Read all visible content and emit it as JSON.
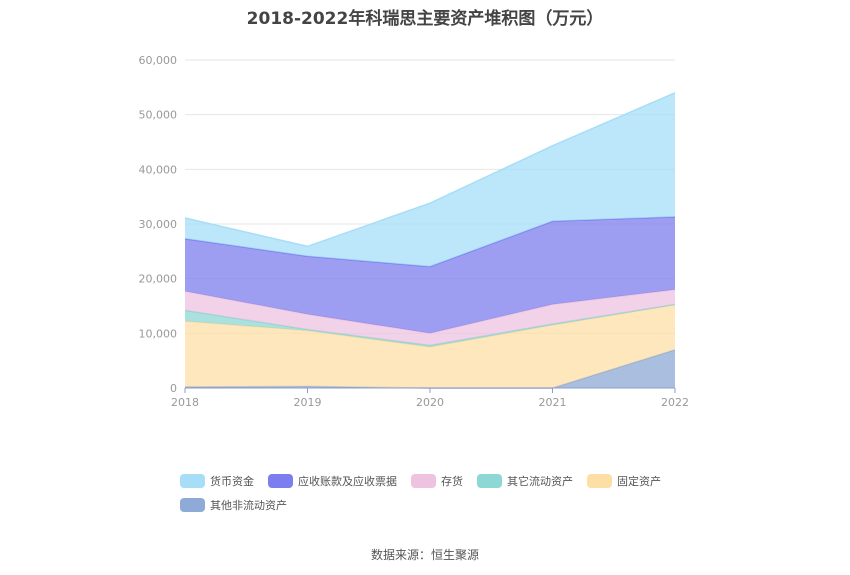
{
  "chart_data": {
    "type": "area",
    "stacked": true,
    "title": "2018-2022年科瑞思主要资产堆积图（万元）",
    "x": [
      "2018",
      "2019",
      "2020",
      "2021",
      "2022"
    ],
    "ylim": [
      0,
      60000
    ],
    "yticks": [
      "0",
      "10,000",
      "20,000",
      "30,000",
      "40,000",
      "50,000",
      "60,000"
    ],
    "grid": true,
    "legend_position": "bottom",
    "series": [
      {
        "name": "其他非流动资产",
        "color": "#8EAAD6",
        "values": [
          200,
          300,
          0,
          0,
          7000
        ]
      },
      {
        "name": "固定资产",
        "color": "#FDDFA5",
        "values": [
          12000,
          10200,
          7500,
          11500,
          8200
        ]
      },
      {
        "name": "其它流动资产",
        "color": "#8DD7D4",
        "values": [
          2000,
          200,
          300,
          200,
          100
        ]
      },
      {
        "name": "存货",
        "color": "#EDC3E0",
        "values": [
          3500,
          2800,
          2200,
          3600,
          2700
        ]
      },
      {
        "name": "应收账款及应收票据",
        "color": "#7C7DEE",
        "values": [
          9600,
          10600,
          12200,
          15200,
          13300
        ]
      },
      {
        "name": "货币资金",
        "color": "#A6DEF7",
        "values": [
          3800,
          1800,
          11600,
          13800,
          22700
        ]
      }
    ]
  },
  "legend": {
    "items": [
      {
        "label": "货币资金",
        "color": "#A6DEF7"
      },
      {
        "label": "应收账款及应收票据",
        "color": "#7C7DEE"
      },
      {
        "label": "存货",
        "color": "#EDC3E0"
      },
      {
        "label": "其它流动资产",
        "color": "#8DD7D4"
      },
      {
        "label": "固定资产",
        "color": "#FDDFA5"
      },
      {
        "label": "其他非流动资产",
        "color": "#8EAAD6"
      }
    ]
  },
  "source": "数据来源：恒生聚源"
}
